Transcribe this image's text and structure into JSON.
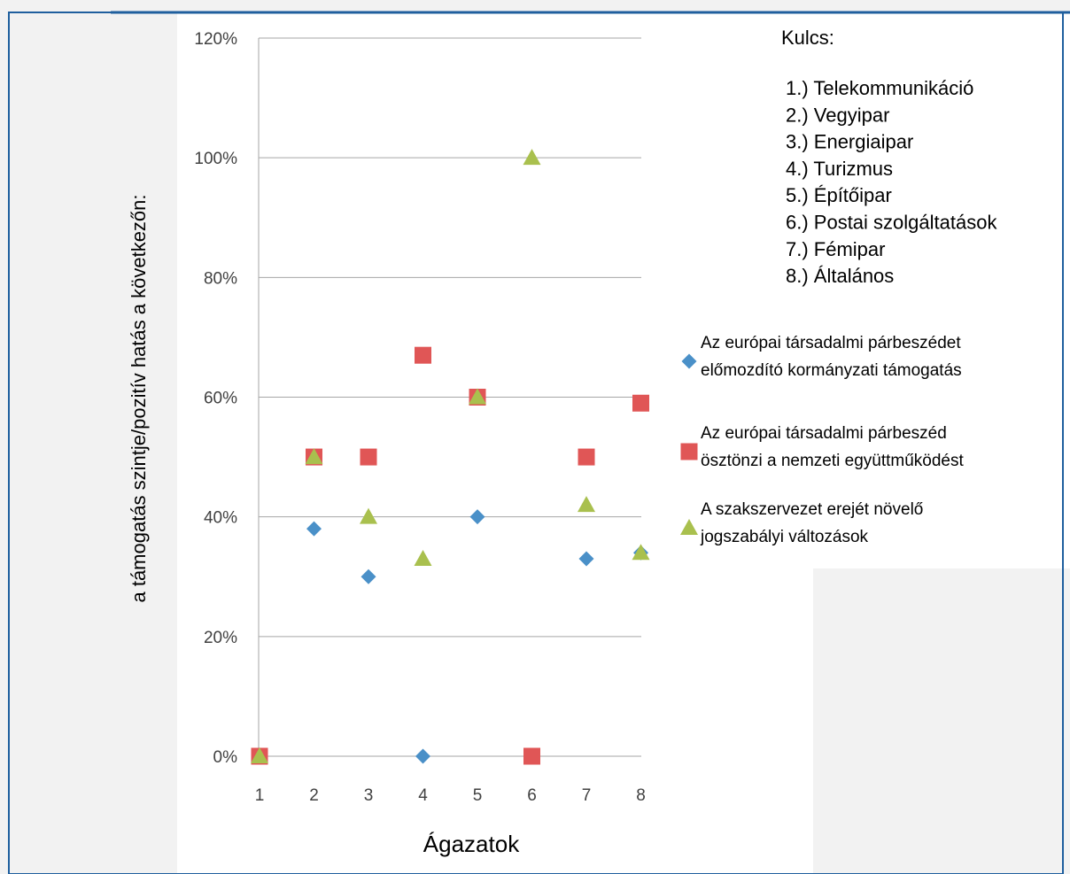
{
  "chart_data": {
    "type": "scatter",
    "x": [
      1,
      2,
      3,
      4,
      5,
      6,
      7,
      8
    ],
    "xlabel": "Ágazatok",
    "ylabel": "a támogatás szintje/pozitív hatás a következőn:",
    "ylim": [
      0,
      120
    ],
    "ytick_labels": [
      "0%",
      "20%",
      "40%",
      "60%",
      "80%",
      "100%",
      "120%"
    ],
    "xtick_labels": [
      "1",
      "2",
      "3",
      "4",
      "5",
      "6",
      "7",
      "8"
    ],
    "grid": "horizontal",
    "series": [
      {
        "name": "Az európai társadalmi párbeszédet előmozdító kormányzati támogatás",
        "name_lines": [
          "Az európai társadalmi párbeszédet",
          "előmozdító kormányzati támogatás"
        ],
        "marker": "diamond",
        "color": "#4a90c8",
        "values": [
          0,
          38,
          30,
          0,
          40,
          null,
          33,
          34
        ]
      },
      {
        "name": "Az európai társadalmi párbeszéd ösztönzi a nemzeti együttműködést",
        "name_lines": [
          "Az európai társadalmi párbeszéd",
          "ösztönzi a nemzeti együttműködést"
        ],
        "marker": "square",
        "color": "#e05656",
        "values": [
          0,
          50,
          50,
          67,
          60,
          0,
          50,
          59
        ]
      },
      {
        "name": "A szakszervezet erejét növelő jogszabályi változások",
        "name_lines": [
          "A szakszervezet erejét növelő",
          "jogszabályi változások"
        ],
        "marker": "triangle",
        "color": "#a9c04e",
        "values": [
          0,
          50,
          40,
          33,
          60,
          100,
          42,
          34
        ]
      }
    ],
    "key": {
      "title": "Kulcs:",
      "items": [
        "1.) Telekommunikáció",
        "2.) Vegyipar",
        "3.) Energiaipar",
        "4.) Turizmus",
        "5.) Építőipar",
        "6.) Postai szolgáltatások",
        "7.) Fémipar",
        "8.) Általános"
      ]
    }
  },
  "frame_color": "#1f5f9e",
  "background_color": "#f2f2f2"
}
